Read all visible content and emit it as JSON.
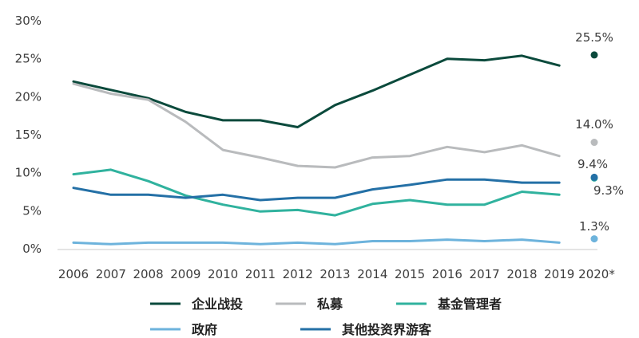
{
  "chart_data": {
    "type": "line",
    "x": [
      "2006",
      "2007",
      "2008",
      "2009",
      "2010",
      "2011",
      "2012",
      "2013",
      "2014",
      "2015",
      "2016",
      "2017",
      "2018",
      "2019",
      "2020*"
    ],
    "ylim": [
      0,
      30
    ],
    "yticks": [
      "0%",
      "5%",
      "10%",
      "15%",
      "20%",
      "25%",
      "30%"
    ],
    "grid": false,
    "legend_position": "bottom",
    "series": [
      {
        "name": "企业战投",
        "color": "#0b4a3c",
        "values": [
          22.0,
          20.9,
          19.8,
          18.0,
          16.9,
          16.9,
          16.0,
          18.9,
          20.8,
          22.9,
          25.0,
          24.8,
          25.4,
          24.1,
          null
        ],
        "point_2020": 25.5,
        "label_2020": "25.5%"
      },
      {
        "name": "私募",
        "color": "#b9bbbd",
        "values": [
          21.7,
          20.4,
          19.6,
          16.7,
          13.0,
          12.0,
          10.9,
          10.7,
          12.0,
          12.2,
          13.4,
          12.7,
          13.6,
          12.2,
          null
        ],
        "point_2020": 14.0,
        "label_2020": "14.0%"
      },
      {
        "name": "基金管理者",
        "color": "#30b29e",
        "values": [
          9.8,
          10.4,
          8.9,
          7.0,
          5.8,
          4.9,
          5.1,
          4.4,
          5.9,
          6.4,
          5.8,
          5.8,
          7.5,
          7.1,
          null
        ],
        "point_2020": 9.3,
        "label_2020": "9.3%"
      },
      {
        "name": "政府",
        "color": "#6db3dc",
        "values": [
          0.8,
          0.6,
          0.8,
          0.8,
          0.8,
          0.6,
          0.8,
          0.6,
          1.0,
          1.0,
          1.2,
          1.0,
          1.2,
          0.8,
          null
        ],
        "point_2020": 1.3,
        "label_2020": "1.3%"
      },
      {
        "name": "其他投资界游客",
        "color": "#2470a6",
        "values": [
          8.0,
          7.1,
          7.1,
          6.7,
          7.1,
          6.4,
          6.7,
          6.7,
          7.8,
          8.4,
          9.1,
          9.1,
          8.7,
          8.7,
          null
        ],
        "point_2020": 9.4,
        "label_2020": "9.4%"
      }
    ]
  }
}
